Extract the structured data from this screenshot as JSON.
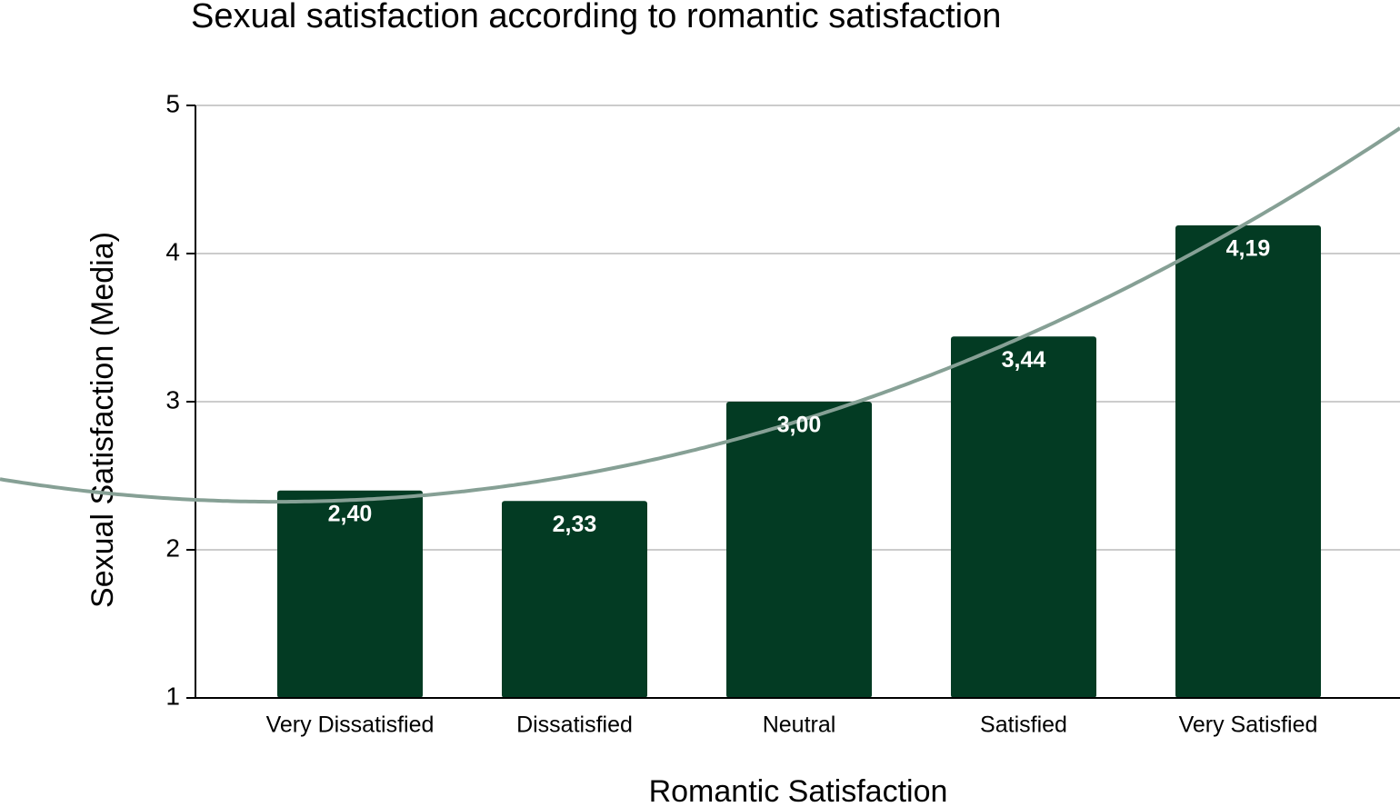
{
  "chart_data": {
    "type": "bar",
    "title": "Sexual satisfaction according to romantic satisfaction",
    "x_label": "Romantic Satisfaction",
    "y_label": "Sexual Satisfaction (Media)",
    "categories": [
      "Very Dissatisfied",
      "Dissatisfied",
      "Neutral",
      "Satisfied",
      "Very Satisfied"
    ],
    "values": [
      2.4,
      2.33,
      3.0,
      3.44,
      4.19
    ],
    "value_labels": [
      "2,40",
      "2,33",
      "3,00",
      "3,44",
      "4,19"
    ],
    "color": "#033b23",
    "trendline": {
      "type": "polynomial",
      "degree": 2,
      "color": "#86a095"
    },
    "ylim": [
      1,
      5
    ],
    "yticks": [
      1,
      2,
      3,
      4,
      5
    ],
    "grid": true
  }
}
